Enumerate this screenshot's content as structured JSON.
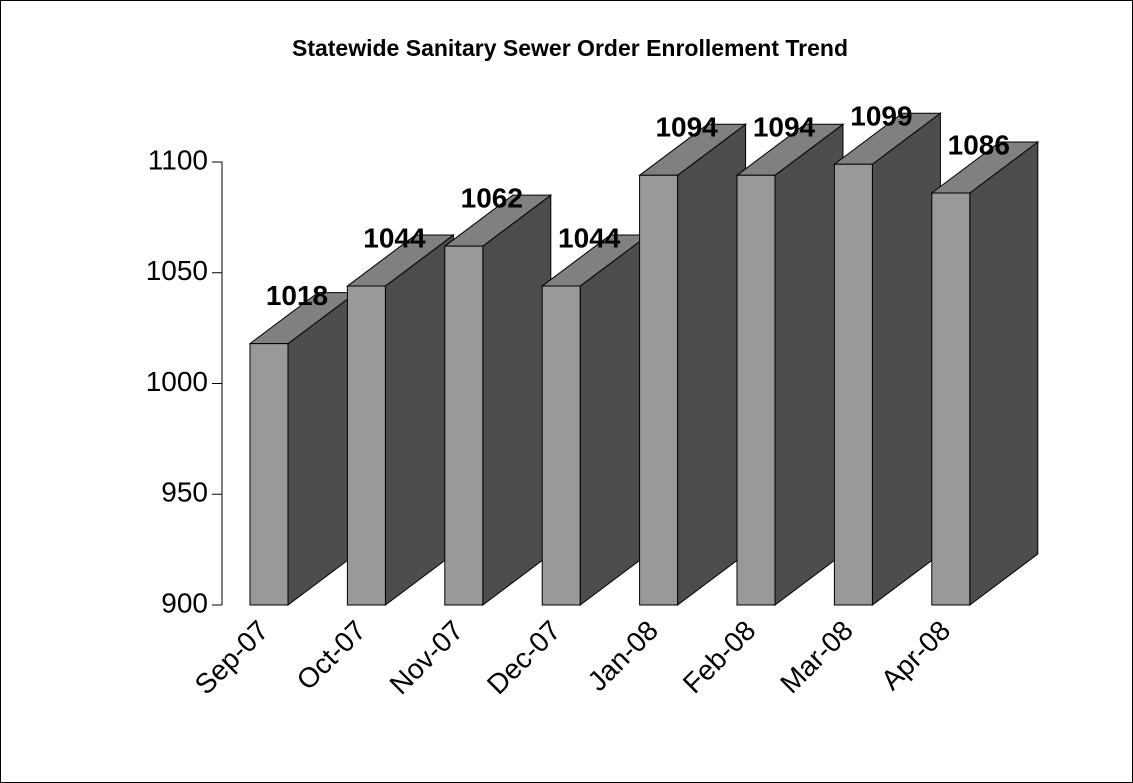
{
  "chart_data": {
    "type": "bar3d",
    "title": "Statewide Sanitary Sewer Order Enrollement Trend",
    "categories": [
      "Sep-07",
      "Oct-07",
      "Nov-07",
      "Dec-07",
      "Jan-08",
      "Feb-08",
      "Mar-08",
      "Apr-08"
    ],
    "values": [
      1018,
      1044,
      1062,
      1044,
      1094,
      1094,
      1099,
      1086
    ],
    "colors": {
      "front": "#999999",
      "side": "#4d4d4d",
      "top": "#808080"
    },
    "ylim": [
      900,
      1100
    ],
    "yticks": [
      900,
      950,
      1000,
      1050,
      1100
    ]
  }
}
